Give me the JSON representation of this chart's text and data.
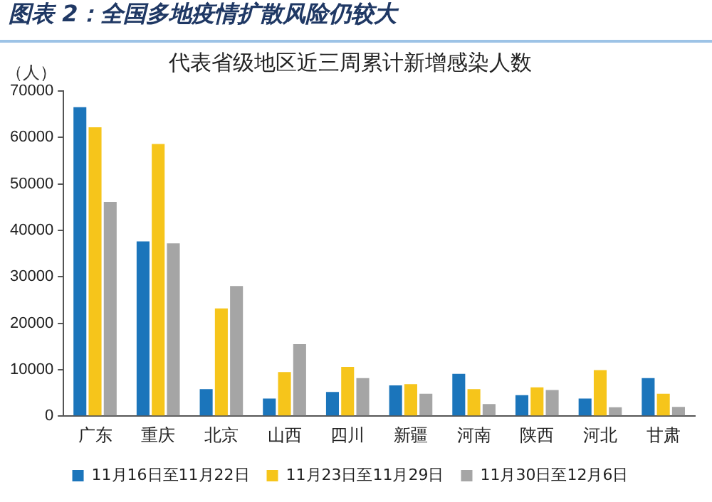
{
  "chart_data": {
    "type": "bar",
    "title": "图表 2：全国多地疫情扩散风险仍较大",
    "subtitle": "代表省级地区近三周累计新增感染人数",
    "ylabel": "（人）",
    "categories": [
      "广东",
      "重庆",
      "北京",
      "山西",
      "四川",
      "新疆",
      "河南",
      "陕西",
      "河北",
      "甘肃"
    ],
    "series": [
      {
        "name": "11月16日至11月22日",
        "color": "#1b75bb",
        "values": [
          66500,
          37600,
          5800,
          3800,
          5200,
          6600,
          9100,
          4500,
          3800,
          8200
        ]
      },
      {
        "name": "11月23日至11月29日",
        "color": "#f6c51b",
        "values": [
          62200,
          58600,
          23200,
          9500,
          10600,
          6900,
          5800,
          6200,
          9900,
          4800
        ]
      },
      {
        "name": "11月30日至12月6日",
        "color": "#a5a5a5",
        "values": [
          46100,
          37200,
          28000,
          15500,
          8200,
          4800,
          2600,
          5600,
          1900,
          2000
        ]
      }
    ],
    "ylim": [
      0,
      70000
    ],
    "yticks": [
      0,
      10000,
      20000,
      30000,
      40000,
      50000,
      60000,
      70000
    ],
    "grid": false,
    "legend": "bottom"
  }
}
